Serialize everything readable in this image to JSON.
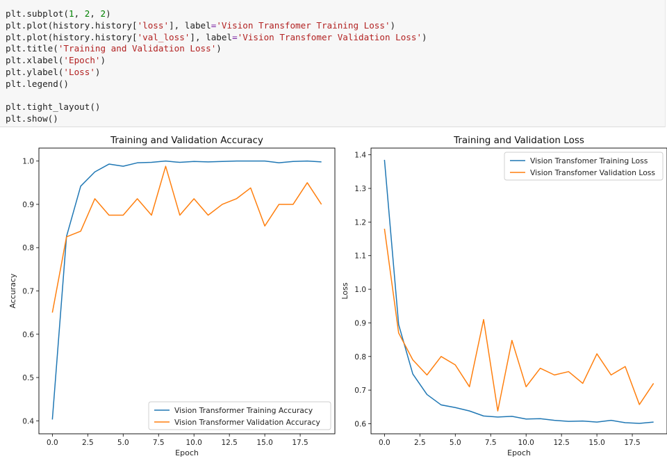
{
  "code": {
    "lines": [
      [
        {
          "t": "plt.subplot(",
          "c": "plain"
        },
        {
          "t": "1",
          "c": "num"
        },
        {
          "t": ", ",
          "c": "plain"
        },
        {
          "t": "2",
          "c": "num"
        },
        {
          "t": ", ",
          "c": "plain"
        },
        {
          "t": "2",
          "c": "num"
        },
        {
          "t": ")",
          "c": "plain"
        }
      ],
      [
        {
          "t": "plt.plot(history.history[",
          "c": "plain"
        },
        {
          "t": "'loss'",
          "c": "str"
        },
        {
          "t": "], label",
          "c": "plain"
        },
        {
          "t": "=",
          "c": "op"
        },
        {
          "t": "'Vision Transfomer Training Loss'",
          "c": "str"
        },
        {
          "t": ")",
          "c": "plain"
        }
      ],
      [
        {
          "t": "plt.plot(history.history[",
          "c": "plain"
        },
        {
          "t": "'val_loss'",
          "c": "str"
        },
        {
          "t": "], label",
          "c": "plain"
        },
        {
          "t": "=",
          "c": "op"
        },
        {
          "t": "'Vision Transfomer Validation Loss'",
          "c": "str"
        },
        {
          "t": ")",
          "c": "plain"
        }
      ],
      [
        {
          "t": "plt.title(",
          "c": "plain"
        },
        {
          "t": "'Training and Validation Loss'",
          "c": "str"
        },
        {
          "t": ")",
          "c": "plain"
        }
      ],
      [
        {
          "t": "plt.xlabel(",
          "c": "plain"
        },
        {
          "t": "'Epoch'",
          "c": "str"
        },
        {
          "t": ")",
          "c": "plain"
        }
      ],
      [
        {
          "t": "plt.ylabel(",
          "c": "plain"
        },
        {
          "t": "'Loss'",
          "c": "str"
        },
        {
          "t": ")",
          "c": "plain"
        }
      ],
      [
        {
          "t": "plt.legend()",
          "c": "plain"
        }
      ],
      [],
      [
        {
          "t": "plt.tight_layout()",
          "c": "plain"
        }
      ],
      [
        {
          "t": "plt.show()",
          "c": "plain"
        }
      ]
    ]
  },
  "colors": {
    "series1": "#1f77b4",
    "series2": "#ff7f0e"
  },
  "chart_data": [
    {
      "type": "line",
      "title": "Training and Validation Accuracy",
      "xlabel": "Epoch",
      "ylabel": "Accuracy",
      "xlim": [
        -0.95,
        19.95
      ],
      "ylim": [
        0.37,
        1.03
      ],
      "xticks": [
        0.0,
        2.5,
        5.0,
        7.5,
        10.0,
        12.5,
        15.0,
        17.5
      ],
      "xtick_labels": [
        "0.0",
        "2.5",
        "5.0",
        "7.5",
        "10.0",
        "12.5",
        "15.0",
        "17.5"
      ],
      "yticks": [
        0.4,
        0.5,
        0.6,
        0.7,
        0.8,
        0.9,
        1.0
      ],
      "ytick_labels": [
        "0.4",
        "0.5",
        "0.6",
        "0.7",
        "0.8",
        "0.9",
        "1.0"
      ],
      "legend_position": "lower-right",
      "x": [
        0,
        1,
        2,
        3,
        4,
        5,
        6,
        7,
        8,
        9,
        10,
        11,
        12,
        13,
        14,
        15,
        16,
        17,
        18,
        19
      ],
      "series": [
        {
          "name": "Vision Transformer Training Accuracy",
          "color": "#1f77b4",
          "values": [
            0.403,
            0.826,
            0.942,
            0.975,
            0.993,
            0.988,
            0.996,
            0.997,
            1.0,
            0.997,
            0.999,
            0.998,
            0.999,
            1.0,
            1.0,
            1.0,
            0.996,
            0.999,
            1.0,
            0.998
          ]
        },
        {
          "name": "Vision Transformer Validation Accuracy",
          "color": "#ff7f0e",
          "values": [
            0.65,
            0.825,
            0.838,
            0.913,
            0.875,
            0.875,
            0.913,
            0.875,
            0.988,
            0.875,
            0.913,
            0.875,
            0.9,
            0.913,
            0.938,
            0.85,
            0.9,
            0.9,
            0.95,
            0.9
          ]
        }
      ]
    },
    {
      "type": "line",
      "title": "Training and Validation Loss",
      "xlabel": "Epoch",
      "ylabel": "Loss",
      "xlim": [
        -0.95,
        19.95
      ],
      "ylim": [
        0.57,
        1.42
      ],
      "xticks": [
        0.0,
        2.5,
        5.0,
        7.5,
        10.0,
        12.5,
        15.0,
        17.5
      ],
      "xtick_labels": [
        "0.0",
        "2.5",
        "5.0",
        "7.5",
        "10.0",
        "12.5",
        "15.0",
        "17.5"
      ],
      "yticks": [
        0.6,
        0.7,
        0.8,
        0.9,
        1.0,
        1.1,
        1.2,
        1.3,
        1.4
      ],
      "ytick_labels": [
        "0.6",
        "0.7",
        "0.8",
        "0.9",
        "1.0",
        "1.1",
        "1.2",
        "1.3",
        "1.4"
      ],
      "legend_position": "upper-right",
      "x": [
        0,
        1,
        2,
        3,
        4,
        5,
        6,
        7,
        8,
        9,
        10,
        11,
        12,
        13,
        14,
        15,
        16,
        17,
        18,
        19
      ],
      "series": [
        {
          "name": "Vision Transfomer Training Loss",
          "color": "#1f77b4",
          "values": [
            1.385,
            0.895,
            0.748,
            0.687,
            0.656,
            0.648,
            0.638,
            0.623,
            0.62,
            0.622,
            0.614,
            0.615,
            0.61,
            0.607,
            0.608,
            0.605,
            0.61,
            0.603,
            0.601,
            0.605
          ]
        },
        {
          "name": "Vision Transfomer Validation Loss",
          "color": "#ff7f0e",
          "values": [
            1.18,
            0.87,
            0.79,
            0.745,
            0.8,
            0.775,
            0.71,
            0.91,
            0.638,
            0.848,
            0.71,
            0.765,
            0.745,
            0.755,
            0.72,
            0.808,
            0.745,
            0.77,
            0.657,
            0.72
          ]
        }
      ]
    }
  ]
}
